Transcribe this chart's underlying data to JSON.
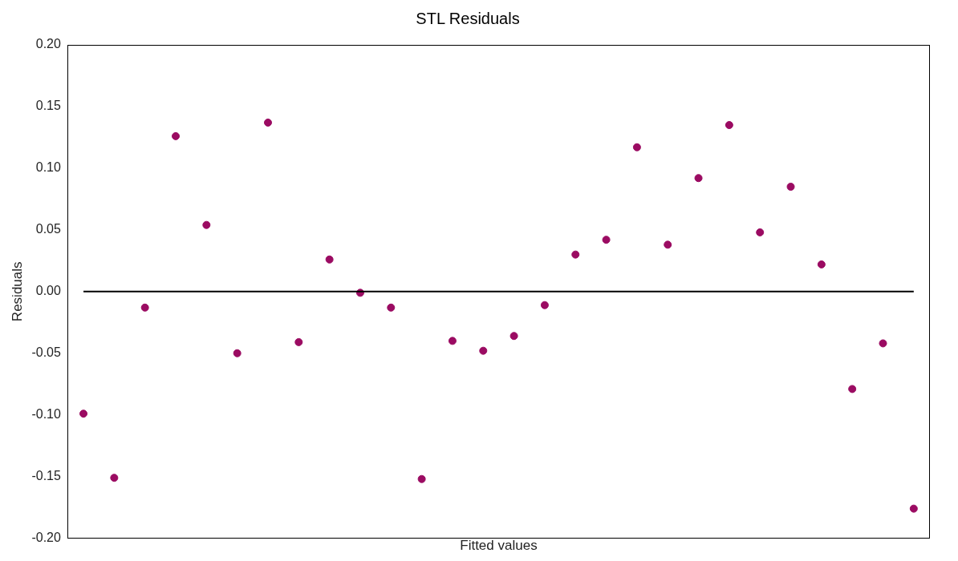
{
  "chart_data": {
    "type": "scatter",
    "title": "STL Residuals",
    "xlabel": "Fitted values",
    "ylabel": "Residuals",
    "categories": [
      null,
      null,
      null,
      null,
      null,
      null,
      null,
      null,
      null,
      null,
      null,
      null,
      null,
      null,
      null,
      null,
      null,
      null,
      null,
      null,
      null,
      null,
      null,
      null,
      null,
      null,
      null,
      null
    ],
    "series": [
      {
        "color": "#9b0b62",
        "marker": "circle",
        "values": [
          -0.099,
          -0.151,
          -0.013,
          0.126,
          0.054,
          -0.05,
          0.137,
          -0.041,
          0.026,
          -0.001,
          -0.013,
          -0.152,
          -0.04,
          -0.048,
          -0.036,
          -0.011,
          0.03,
          0.042,
          0.117,
          0.038,
          0.092,
          0.135,
          0.048,
          0.085,
          0.022,
          -0.079,
          -0.042,
          -0.176
        ]
      },
      {
        "type": "line",
        "color": "#000000",
        "marker": "none",
        "line_style": "solid",
        "values": [
          0,
          0,
          0,
          0,
          0,
          0,
          0,
          0,
          0,
          0,
          0,
          0,
          0,
          0,
          0,
          0,
          0,
          0,
          0,
          0,
          0,
          0,
          0,
          0,
          0,
          0,
          0,
          0
        ]
      }
    ],
    "ylim": [
      -0.2,
      0.2
    ],
    "yticks": [
      {
        "value": -0.2,
        "label": "-0.20"
      },
      {
        "value": -0.15,
        "label": "-0.15"
      },
      {
        "value": -0.1,
        "label": "-0.10"
      },
      {
        "value": -0.05,
        "label": "-0.05"
      },
      {
        "value": 0,
        "label": "0.00"
      },
      {
        "value": 0.05,
        "label": "0.05"
      },
      {
        "value": 0.1,
        "label": "0.10"
      },
      {
        "value": 0.15,
        "label": "0.15"
      },
      {
        "value": 0.2,
        "label": "0.20"
      }
    ],
    "tick_labels": "y",
    "grid": false,
    "legend": false
  }
}
